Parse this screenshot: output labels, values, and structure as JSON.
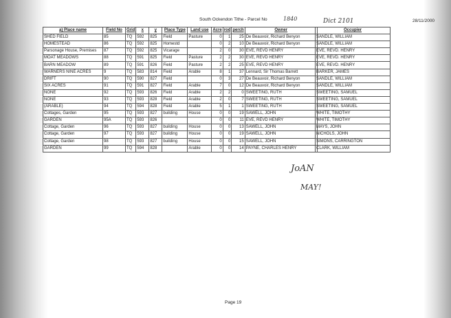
{
  "header": {
    "title": "South Ockendon Tithe - Parcel No",
    "parcel_note": "1840",
    "hand_note": "Dict 2101",
    "date": "28/11/2000"
  },
  "columns": [
    "a) Place name",
    "Field No",
    "Grid",
    "x",
    "y",
    "Place Type",
    "Land use",
    "Acre",
    "rod",
    "perch",
    "Owner"
  ],
  "occupier_header": "Occupier",
  "rows": [
    [
      "SHED FIELD",
      "85",
      "TQ",
      "592",
      "825",
      "Field",
      "Pasture",
      "0",
      "1",
      "25",
      "De Beauvoir, Richard Benyon",
      "SANDLE, WILLIAM"
    ],
    [
      "HOMESTEAD",
      "86",
      "TQ",
      "592",
      "825",
      "Homestd",
      "",
      "0",
      "2",
      "10",
      "De Beauvoir, Richard Benyon",
      "SANDLE, WILLIAM"
    ],
    [
      "Parsonage House, Premises",
      "87",
      "TQ",
      "592",
      "825",
      "Vicarage",
      "",
      "2",
      "0",
      "30",
      "EVE, REVD HENRY",
      "EVE, REVD. HENRY"
    ],
    [
      "MOAT MEADOWS",
      "88",
      "TQ",
      "591",
      "825",
      "Field",
      "Pasture",
      "2",
      "2",
      "30",
      "EVE, REVD HENRY",
      "EVE, REVD. HENRY"
    ],
    [
      "BARN MEADOW",
      "89",
      "TQ",
      "591",
      "826",
      "Field",
      "Pasture",
      "2",
      "2",
      "25",
      "EVE, REVD HENRY",
      "EVE, REVD. HENRY"
    ],
    [
      "WARNERS NINE ACRES",
      "9",
      "TQ",
      "583",
      "814",
      "Field",
      "Arable",
      "8",
      "1",
      "37",
      "Lennard, Sir Thomas Barrett",
      "BARKER, JAMES"
    ],
    [
      "DRIFT",
      "90",
      "TQ",
      "590",
      "827",
      "Field",
      "",
      "0",
      "3",
      "27",
      "De Beauvoir, Richard Benyon",
      "SANDLE, WILLIAM"
    ],
    [
      "SIX ACRES",
      "91",
      "TQ",
      "591",
      "827",
      "Field",
      "Arable",
      "7",
      "0",
      "12",
      "De Beauvoir, Richard Benyon",
      "SANDLE, WILLIAM"
    ],
    [
      "NONE",
      "92",
      "TQ",
      "593",
      "826",
      "Field",
      "Arable",
      "2",
      "2",
      "0",
      "SWEETING, RUTH",
      "SWEETING, SAMUEL"
    ],
    [
      "NONE",
      "93",
      "TQ",
      "593",
      "828",
      "Field",
      "Arable",
      "2",
      "0",
      "7",
      "SWEETING, RUTH",
      "SWEETING, SAMUEL"
    ],
    [
      "(ARABLE)",
      "94",
      "TQ",
      "594",
      "828",
      "Field",
      "Arable",
      "5",
      "1",
      "1",
      "SWEETING, RUTH",
      "SWEETING, SAMUEL"
    ],
    [
      "Cottages, Garden",
      "95",
      "TQ",
      "593",
      "827",
      "building",
      "House",
      "0",
      "0",
      "19",
      "SAWELL, JOHN",
      "WHITE, TIMOTHY"
    ],
    [
      "GARDEN",
      "95A",
      "TQ",
      "593",
      "826",
      "",
      "",
      "0",
      "0",
      "11",
      "EVE, REVD HENRY",
      "WHITE, TIMOTHY"
    ],
    [
      "Cottage, Garden",
      "96",
      "TQ",
      "593",
      "827",
      "building",
      "House",
      "0",
      "0",
      "13",
      "SAWELL, JOHN",
      "MAYS, JOHN"
    ],
    [
      "Cottage, Garden",
      "97",
      "TQ",
      "593",
      "827",
      "building",
      "House",
      "0",
      "0",
      "19",
      "SAWELL, JOHN",
      "NICHOLS, JOHN"
    ],
    [
      "Cottage, Garden",
      "98",
      "TQ",
      "593",
      "827",
      "building",
      "House",
      "0",
      "0",
      "15",
      "SAWELL, JOHN",
      "SIMONS, CARRINGTON"
    ],
    [
      "GARDEN",
      "99",
      "TQ",
      "594",
      "828",
      "",
      "Arable",
      "0",
      "0",
      "14",
      "PAYNE, CHARLES HENRY",
      "CLARK, WILLIAM"
    ]
  ],
  "handwriting": [
    "JoAN",
    "MAY!"
  ],
  "footer": {
    "page": "Page 19"
  }
}
